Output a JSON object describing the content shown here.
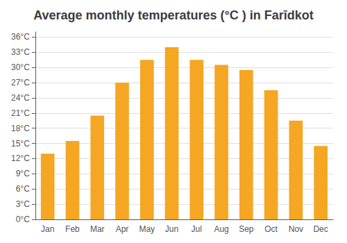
{
  "chart_data": {
    "type": "bar",
    "title": "Average monthly temperatures (°C ) in Farīdkot",
    "categories": [
      "Jan",
      "Feb",
      "Mar",
      "Apr",
      "May",
      "Jun",
      "Jul",
      "Aug",
      "Sep",
      "Oct",
      "Nov",
      "Dec"
    ],
    "values": [
      13.0,
      15.5,
      20.5,
      27.0,
      31.5,
      34.0,
      31.5,
      30.5,
      29.5,
      25.5,
      19.5,
      14.5
    ],
    "color": "#F5A623",
    "ylim": [
      0,
      37
    ],
    "yticks": [
      {
        "value": 0,
        "label": "0°C"
      },
      {
        "value": 3,
        "label": "3°C"
      },
      {
        "value": 6,
        "label": "6°C"
      },
      {
        "value": 9,
        "label": "9°C"
      },
      {
        "value": 12,
        "label": "12°C"
      },
      {
        "value": 15,
        "label": "15°C"
      },
      {
        "value": 18,
        "label": "18°C"
      },
      {
        "value": 21,
        "label": "21°C"
      },
      {
        "value": 24,
        "label": "24°C"
      },
      {
        "value": 27,
        "label": "27°C"
      },
      {
        "value": 30,
        "label": "30°C"
      },
      {
        "value": 33,
        "label": "33°C"
      },
      {
        "value": 36,
        "label": "36°C"
      }
    ],
    "grid": true
  }
}
